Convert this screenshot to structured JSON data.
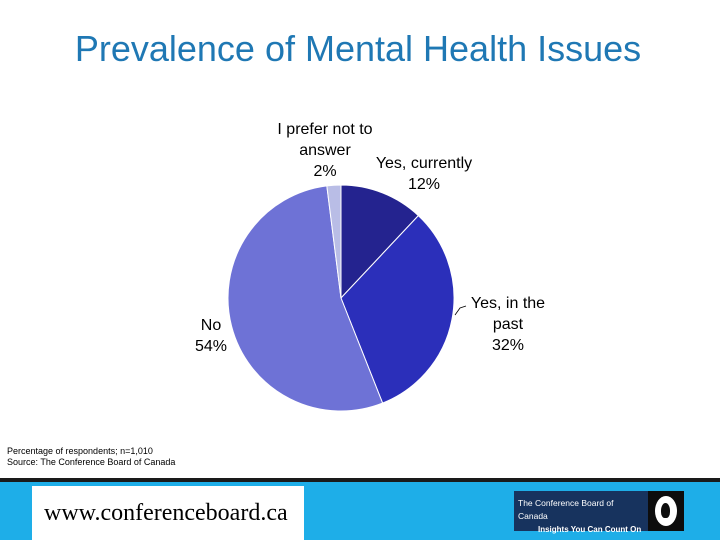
{
  "slide": {
    "title": "Prevalence of Mental Health Issues",
    "footnote_line1": "Percentage of respondents; n=1,010",
    "footnote_line2": "Source: The Conference Board of Canada",
    "url": "www.conferenceboard.ca"
  },
  "logo": {
    "line1": "The Conference Board of Canada",
    "line2": "Insights You Can Count On",
    "icon": "torch-flame-icon"
  },
  "colors": {
    "title": "#1f78b4",
    "footer_bar": "#1eaee8",
    "logo_bg": "#17335e"
  },
  "chart_data": {
    "type": "pie",
    "start": "12 o'clock, clockwise",
    "slices": [
      {
        "label_lines": [
          "Yes, currently",
          "12%"
        ],
        "value": 12,
        "color": "#24238f"
      },
      {
        "label_lines": [
          "Yes, in the",
          "past",
          "32%"
        ],
        "value": 32,
        "color": "#2b2fba"
      },
      {
        "label_lines": [
          "No",
          "54%"
        ],
        "value": 54,
        "color": "#6e72d6"
      },
      {
        "label_lines": [
          "I prefer not to",
          "answer",
          "2%"
        ],
        "value": 2,
        "color": "#b9bde6"
      }
    ]
  }
}
